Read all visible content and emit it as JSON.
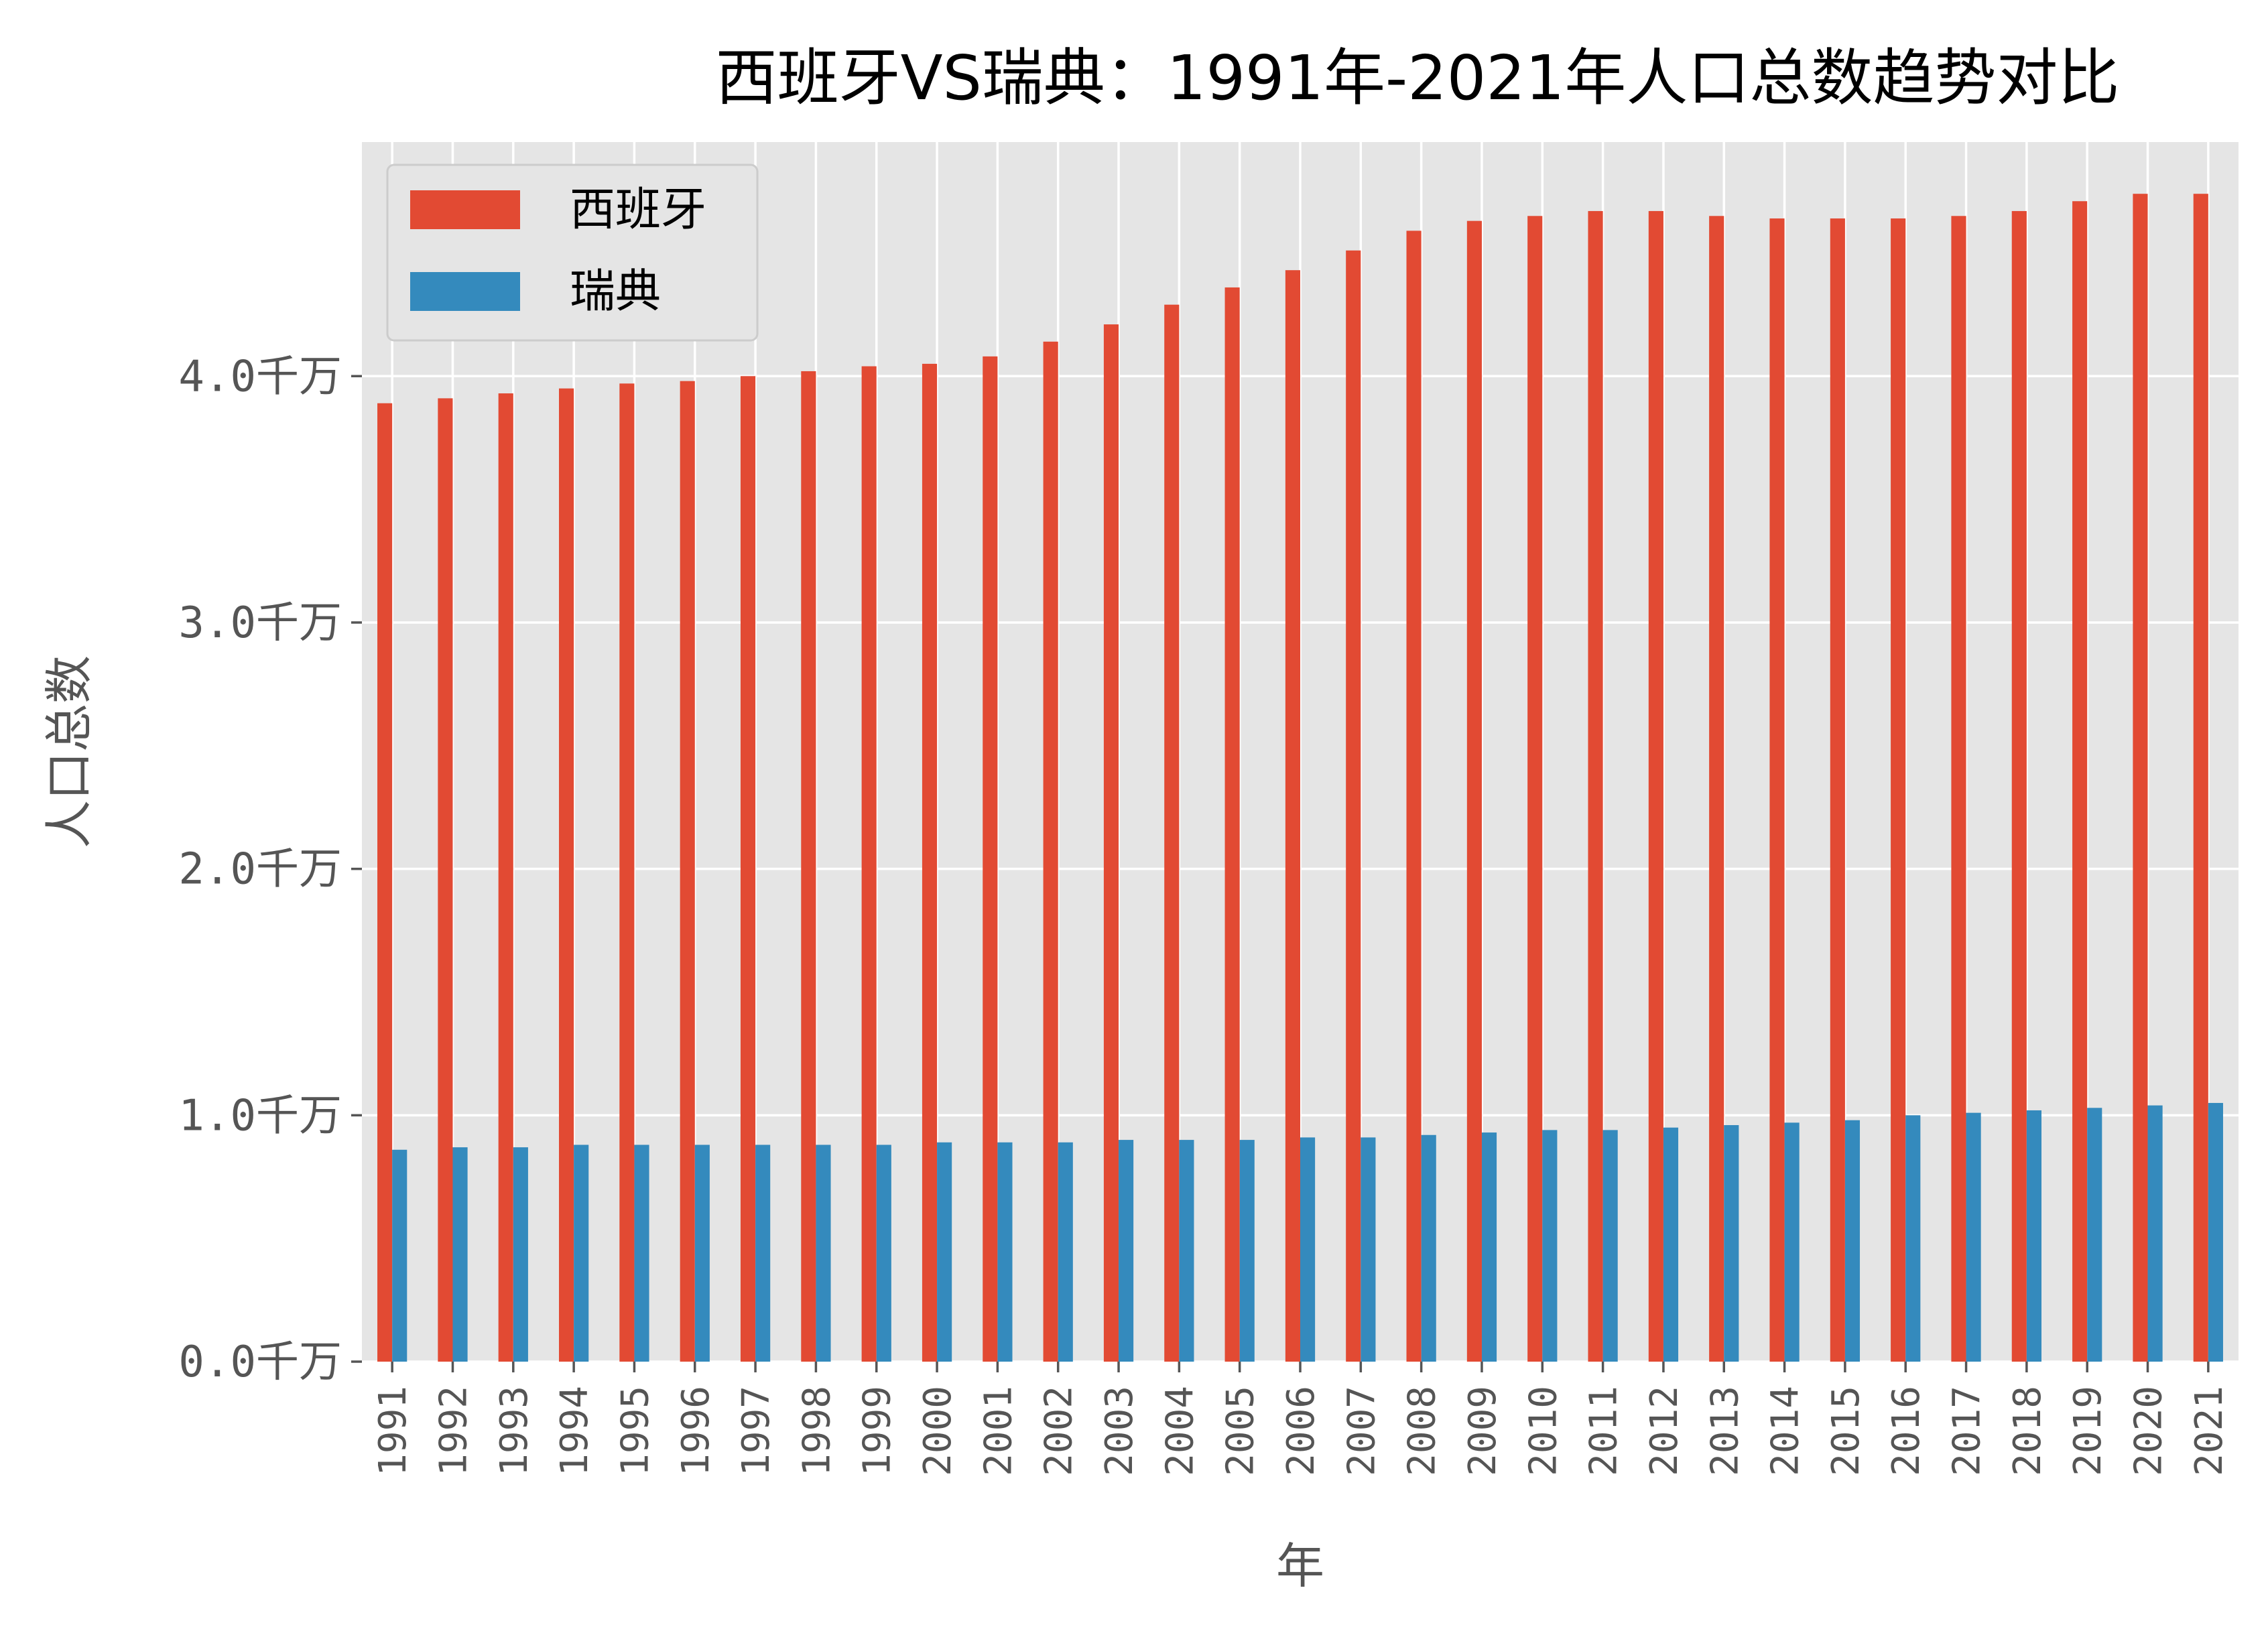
{
  "chart_data": {
    "type": "bar",
    "title": "西班牙VS瑞典：1991年-2021年人口总数趋势对比",
    "xlabel": "年",
    "ylabel": "人口总数",
    "y_unit": "千万",
    "ylim": [
      0,
      4.95
    ],
    "yticks": [
      {
        "value": 0,
        "label": "0.0千万"
      },
      {
        "value": 1,
        "label": "1.0千万"
      },
      {
        "value": 2,
        "label": "2.0千万"
      },
      {
        "value": 3,
        "label": "3.0千万"
      },
      {
        "value": 4,
        "label": "4.0千万"
      }
    ],
    "grid": true,
    "legend_position": "top-left",
    "categories": [
      "1991",
      "1992",
      "1993",
      "1994",
      "1995",
      "1996",
      "1997",
      "1998",
      "1999",
      "2000",
      "2001",
      "2002",
      "2003",
      "2004",
      "2005",
      "2006",
      "2007",
      "2008",
      "2009",
      "2010",
      "2011",
      "2012",
      "2013",
      "2014",
      "2015",
      "2016",
      "2017",
      "2018",
      "2019",
      "2020",
      "2021"
    ],
    "series": [
      {
        "name": "西班牙",
        "color": "#E24A33",
        "values": [
          3.89,
          3.91,
          3.93,
          3.95,
          3.97,
          3.98,
          4.0,
          4.02,
          4.04,
          4.05,
          4.08,
          4.14,
          4.21,
          4.29,
          4.36,
          4.43,
          4.51,
          4.59,
          4.63,
          4.65,
          4.67,
          4.67,
          4.65,
          4.64,
          4.64,
          4.64,
          4.65,
          4.67,
          4.71,
          4.74,
          4.74
        ]
      },
      {
        "name": "瑞典",
        "color": "#348ABD",
        "values": [
          0.86,
          0.87,
          0.87,
          0.88,
          0.88,
          0.88,
          0.88,
          0.88,
          0.88,
          0.89,
          0.89,
          0.89,
          0.9,
          0.9,
          0.9,
          0.91,
          0.91,
          0.92,
          0.93,
          0.94,
          0.94,
          0.95,
          0.96,
          0.97,
          0.98,
          1.0,
          1.01,
          1.02,
          1.03,
          1.04,
          1.05
        ]
      }
    ]
  }
}
